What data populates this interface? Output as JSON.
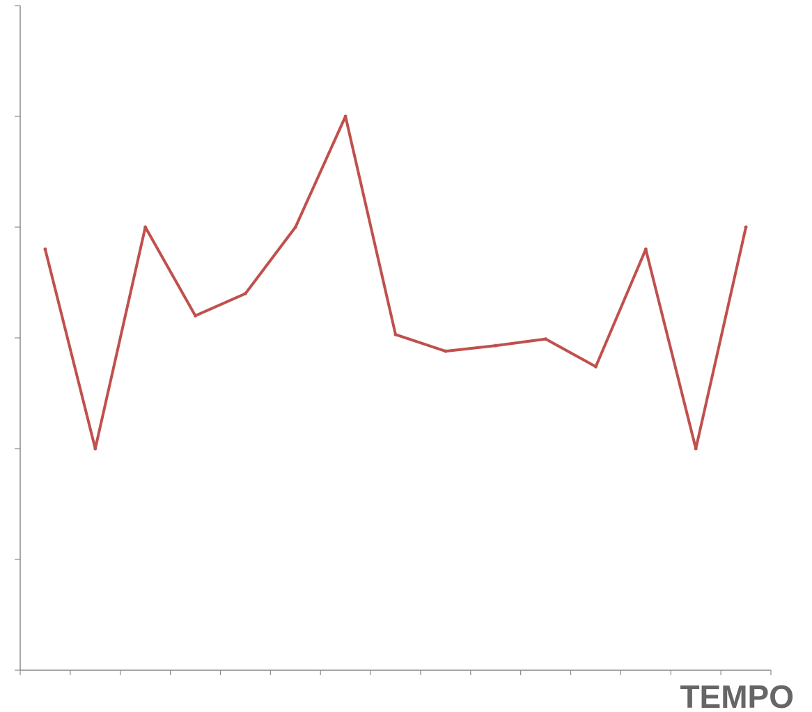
{
  "chart_data": {
    "type": "line",
    "title": "",
    "xlabel": "TEMPO",
    "ylabel": "",
    "grid": false,
    "xlim": [
      0,
      15
    ],
    "ylim": [
      0,
      6
    ],
    "x_ticks": [
      0,
      1,
      2,
      3,
      4,
      5,
      6,
      7,
      8,
      9,
      10,
      11,
      12,
      13,
      14,
      15
    ],
    "y_ticks": [
      0,
      1,
      2,
      3,
      4,
      5,
      6
    ],
    "series": [
      {
        "color": "#c0504d",
        "x": [
          0.5,
          1.5,
          2.5,
          3.5,
          4.5,
          5.5,
          6.5,
          7.5,
          8.5,
          9.5,
          10.5,
          11.5,
          12.5,
          13.5,
          14.5
        ],
        "values": [
          3.8,
          2.0,
          4.0,
          3.2,
          3.4,
          4.0,
          5.0,
          3.03,
          2.88,
          2.93,
          2.99,
          2.74,
          3.8,
          2.0,
          4.0
        ]
      }
    ]
  }
}
